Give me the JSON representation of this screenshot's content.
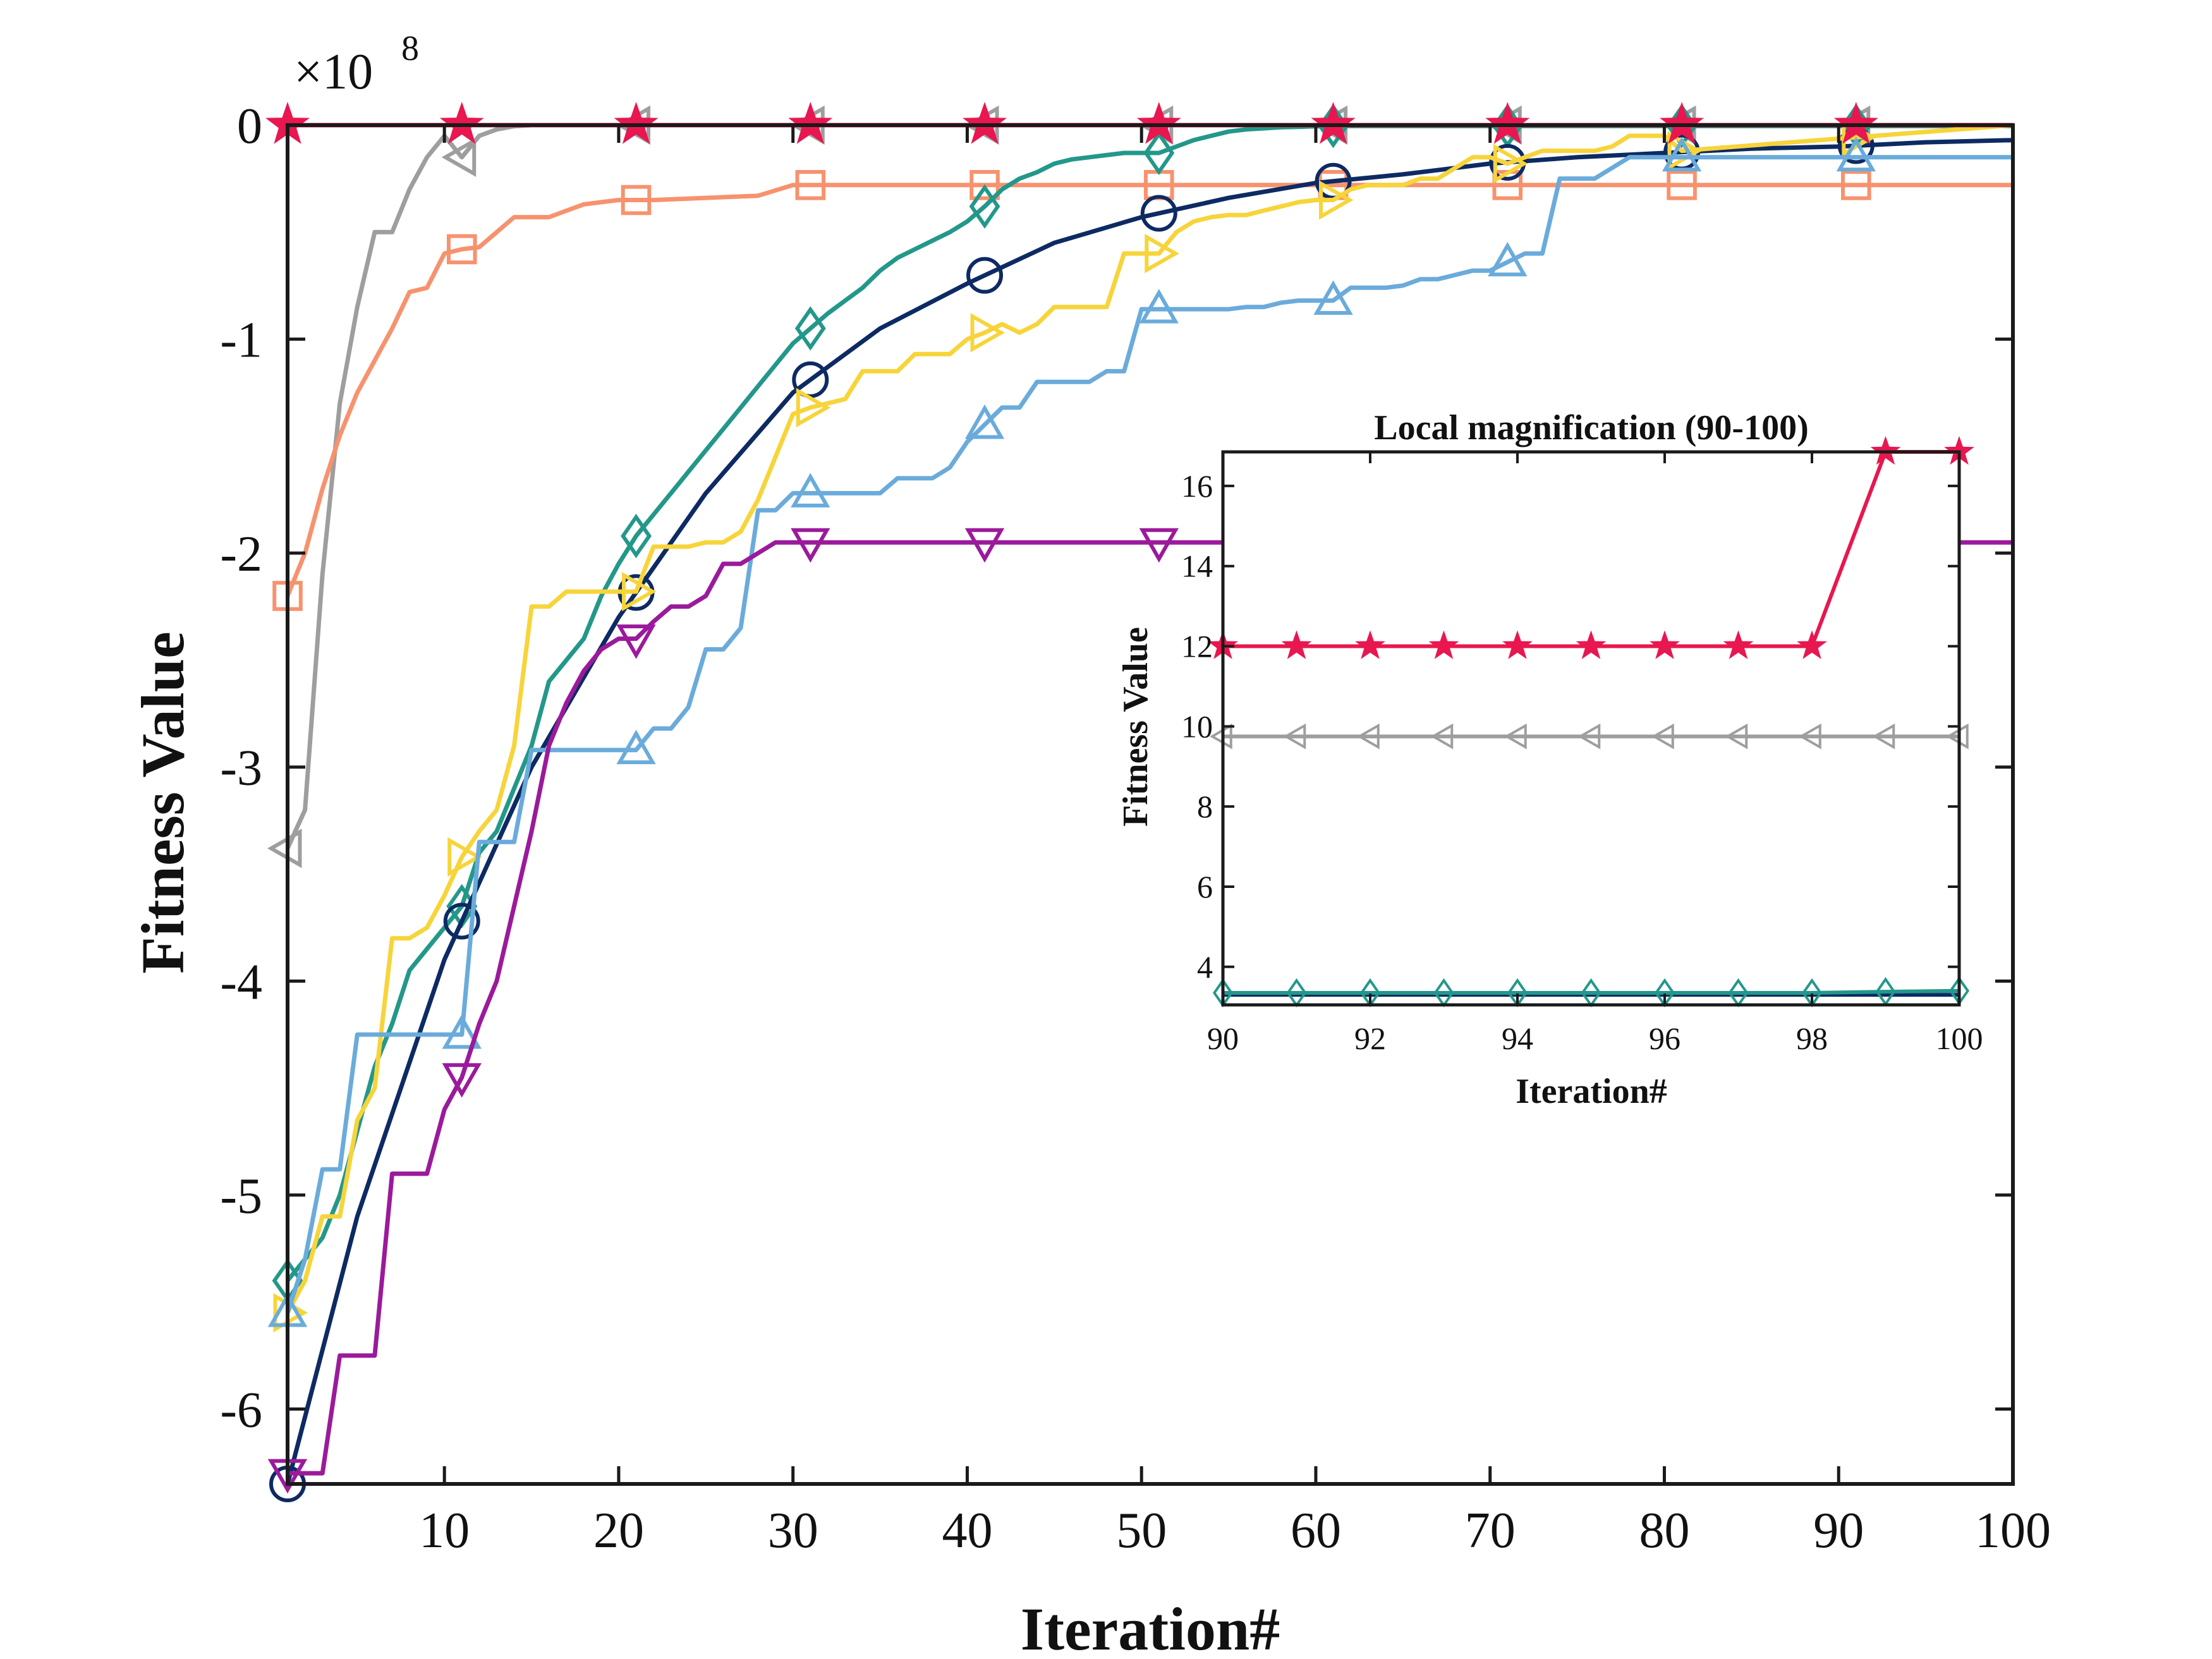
{
  "chart_data": [
    {
      "type": "line",
      "xlabel": "Iteration#",
      "ylabel": "Fitness Value",
      "exponent_base": "×10",
      "exponent_power": "8",
      "xlim": [
        1,
        100
      ],
      "ylim": [
        -6.35,
        0
      ],
      "xticks": [
        10,
        20,
        30,
        40,
        50,
        60,
        70,
        80,
        90,
        100
      ],
      "yticks": [
        0,
        -1,
        -2,
        -3,
        -4,
        -5,
        -6
      ],
      "series": [
        {
          "name": "gray-triangle-left",
          "color": "#9e9e9e",
          "marker": "tri-left",
          "x": [
            1,
            2,
            3,
            4,
            5,
            6,
            7,
            8,
            9,
            10,
            11,
            12,
            13,
            14,
            15,
            100
          ],
          "values": [
            -3.38,
            -3.2,
            -2.1,
            -1.3,
            -0.85,
            -0.5,
            -0.5,
            -0.3,
            -0.15,
            -0.05,
            -0.15,
            -0.05,
            -0.02,
            -0.005,
            0,
            0
          ]
        },
        {
          "name": "salmon-square",
          "color": "#f7926e",
          "marker": "square",
          "x": [
            1,
            2,
            3,
            4,
            5,
            6,
            7,
            8,
            9,
            10,
            11,
            12,
            13,
            14,
            15,
            16,
            17,
            18,
            19,
            20,
            22,
            25,
            28,
            30,
            100
          ],
          "values": [
            -2.2,
            -2.0,
            -1.7,
            -1.45,
            -1.25,
            -1.1,
            -0.95,
            -0.78,
            -0.76,
            -0.6,
            -0.58,
            -0.57,
            -0.5,
            -0.43,
            -0.43,
            -0.43,
            -0.4,
            -0.37,
            -0.36,
            -0.35,
            -0.35,
            -0.34,
            -0.33,
            -0.28,
            -0.28
          ]
        },
        {
          "name": "teal-diamond",
          "color": "#23988a",
          "marker": "diamond",
          "x": [
            1,
            2,
            3,
            4,
            5,
            6,
            7,
            8,
            9,
            10,
            11,
            12,
            13,
            14,
            15,
            16,
            17,
            18,
            19,
            20,
            21,
            22,
            23,
            24,
            25,
            26,
            27,
            28,
            29,
            30,
            31,
            32,
            33,
            34,
            35,
            36,
            37,
            38,
            39,
            40,
            41,
            42,
            43,
            44,
            45,
            46,
            47,
            48,
            49,
            50,
            51,
            52,
            53,
            54,
            55,
            56,
            57,
            58,
            59,
            60,
            61,
            100
          ],
          "values": [
            -5.4,
            -5.3,
            -5.2,
            -5.0,
            -4.7,
            -4.4,
            -4.2,
            -3.95,
            -3.85,
            -3.75,
            -3.65,
            -3.4,
            -3.3,
            -3.1,
            -2.9,
            -2.6,
            -2.5,
            -2.4,
            -2.2,
            -2.05,
            -1.92,
            -1.82,
            -1.72,
            -1.62,
            -1.52,
            -1.42,
            -1.32,
            -1.22,
            -1.12,
            -1.02,
            -0.95,
            -0.88,
            -0.82,
            -0.76,
            -0.68,
            -0.62,
            -0.58,
            -0.54,
            -0.5,
            -0.45,
            -0.38,
            -0.3,
            -0.25,
            -0.22,
            -0.18,
            -0.16,
            -0.15,
            -0.14,
            -0.13,
            -0.13,
            -0.13,
            -0.1,
            -0.07,
            -0.05,
            -0.03,
            -0.02,
            -0.015,
            -0.01,
            -0.008,
            -0.005,
            -0.004,
            -0.004
          ]
        },
        {
          "name": "navy-circle",
          "color": "#0d2a63",
          "marker": "circle",
          "x": [
            1,
            5,
            10,
            15,
            20,
            25,
            30,
            35,
            40,
            45,
            50,
            55,
            60,
            65,
            70,
            75,
            80,
            85,
            90,
            95,
            100
          ],
          "values": [
            -6.35,
            -5.1,
            -3.9,
            -3.0,
            -2.3,
            -1.72,
            -1.25,
            -0.95,
            -0.74,
            -0.55,
            -0.43,
            -0.34,
            -0.27,
            -0.23,
            -0.18,
            -0.15,
            -0.13,
            -0.11,
            -0.1,
            -0.08,
            -0.07
          ]
        },
        {
          "name": "yellow-triangle-right",
          "color": "#f7d43a",
          "marker": "tri-right",
          "x": [
            1,
            2,
            3,
            4,
            5,
            6,
            7,
            8,
            9,
            10,
            11,
            12,
            13,
            14,
            15,
            16,
            17,
            18,
            19,
            20,
            21,
            22,
            23,
            24,
            25,
            26,
            27,
            28,
            29,
            30,
            31,
            32,
            33,
            34,
            35,
            36,
            37,
            38,
            39,
            40,
            41,
            42,
            43,
            44,
            45,
            46,
            47,
            48,
            49,
            50,
            51,
            52,
            53,
            54,
            55,
            56,
            57,
            58,
            59,
            60,
            61,
            62,
            63,
            64,
            65,
            66,
            67,
            68,
            69,
            70,
            71,
            72,
            73,
            74,
            75,
            76,
            77,
            78,
            79,
            80,
            81,
            100
          ],
          "values": [
            -5.55,
            -5.4,
            -5.1,
            -5.1,
            -4.65,
            -4.5,
            -3.8,
            -3.8,
            -3.75,
            -3.6,
            -3.42,
            -3.3,
            -3.2,
            -2.9,
            -2.25,
            -2.25,
            -2.18,
            -2.18,
            -2.18,
            -2.18,
            -2.18,
            -1.97,
            -1.97,
            -1.97,
            -1.95,
            -1.95,
            -1.9,
            -1.75,
            -1.55,
            -1.35,
            -1.32,
            -1.3,
            -1.28,
            -1.15,
            -1.15,
            -1.15,
            -1.07,
            -1.07,
            -1.07,
            -1.0,
            -0.97,
            -0.93,
            -0.97,
            -0.93,
            -0.85,
            -0.85,
            -0.85,
            -0.85,
            -0.6,
            -0.6,
            -0.6,
            -0.5,
            -0.45,
            -0.43,
            -0.42,
            -0.42,
            -0.4,
            -0.38,
            -0.36,
            -0.35,
            -0.35,
            -0.3,
            -0.28,
            -0.28,
            -0.28,
            -0.25,
            -0.25,
            -0.2,
            -0.15,
            -0.15,
            -0.18,
            -0.15,
            -0.12,
            -0.12,
            -0.12,
            -0.12,
            -0.1,
            -0.05,
            -0.05,
            -0.05,
            -0.12,
            0
          ]
        },
        {
          "name": "blue-triangle-up",
          "color": "#6aabdb",
          "marker": "tri-up",
          "x": [
            1,
            2,
            3,
            4,
            5,
            6,
            7,
            8,
            9,
            10,
            11,
            12,
            13,
            14,
            15,
            16,
            17,
            18,
            19,
            20,
            21,
            22,
            23,
            24,
            25,
            26,
            27,
            28,
            29,
            30,
            31,
            32,
            33,
            34,
            35,
            36,
            37,
            38,
            39,
            40,
            41,
            42,
            43,
            44,
            45,
            46,
            47,
            48,
            49,
            50,
            51,
            52,
            53,
            54,
            55,
            56,
            57,
            58,
            59,
            60,
            61,
            62,
            63,
            64,
            65,
            66,
            67,
            68,
            69,
            70,
            71,
            72,
            73,
            74,
            75,
            76,
            77,
            78,
            79,
            80,
            100
          ],
          "values": [
            -5.55,
            -5.3,
            -4.88,
            -4.88,
            -4.25,
            -4.25,
            -4.25,
            -4.25,
            -4.25,
            -4.25,
            -4.25,
            -3.35,
            -3.35,
            -3.35,
            -2.92,
            -2.92,
            -2.92,
            -2.92,
            -2.92,
            -2.92,
            -2.92,
            -2.82,
            -2.82,
            -2.72,
            -2.45,
            -2.45,
            -2.35,
            -1.8,
            -1.8,
            -1.72,
            -1.72,
            -1.72,
            -1.72,
            -1.72,
            -1.72,
            -1.65,
            -1.65,
            -1.65,
            -1.6,
            -1.48,
            -1.4,
            -1.32,
            -1.32,
            -1.2,
            -1.2,
            -1.2,
            -1.2,
            -1.15,
            -1.15,
            -0.86,
            -0.86,
            -0.86,
            -0.86,
            -0.86,
            -0.86,
            -0.85,
            -0.85,
            -0.83,
            -0.82,
            -0.82,
            -0.82,
            -0.76,
            -0.76,
            -0.76,
            -0.75,
            -0.72,
            -0.72,
            -0.7,
            -0.68,
            -0.68,
            -0.64,
            -0.6,
            -0.6,
            -0.25,
            -0.25,
            -0.25,
            -0.2,
            -0.15,
            -0.15,
            -0.15,
            -0.15
          ]
        },
        {
          "name": "purple-triangle-down",
          "color": "#9b1a9b",
          "marker": "tri-down",
          "x": [
            1,
            2,
            3,
            4,
            5,
            6,
            7,
            8,
            9,
            10,
            11,
            12,
            13,
            14,
            15,
            16,
            17,
            18,
            19,
            20,
            21,
            22,
            23,
            24,
            25,
            26,
            27,
            28,
            29,
            30,
            31,
            100
          ],
          "values": [
            -6.3,
            -6.3,
            -6.3,
            -5.75,
            -5.75,
            -5.75,
            -4.9,
            -4.9,
            -4.9,
            -4.6,
            -4.45,
            -4.2,
            -4.0,
            -3.65,
            -3.3,
            -2.9,
            -2.7,
            -2.55,
            -2.45,
            -2.4,
            -2.4,
            -2.32,
            -2.25,
            -2.25,
            -2.2,
            -2.05,
            -2.05,
            -2.0,
            -1.95,
            -1.95,
            -1.95,
            -1.95
          ]
        },
        {
          "name": "crimson-star",
          "color": "#e8174f",
          "marker": "star",
          "x": [
            1,
            100
          ],
          "values": [
            0,
            0
          ]
        }
      ]
    },
    {
      "type": "line",
      "title": "Local magnification (90-100)",
      "xlabel": "Iteration#",
      "ylabel": "Fitness Value",
      "xlim": [
        90,
        100
      ],
      "ylim": [
        3.05,
        16.85
      ],
      "xticks": [
        90,
        92,
        94,
        96,
        98,
        100
      ],
      "yticks": [
        4,
        6,
        8,
        10,
        12,
        14,
        16
      ],
      "series": [
        {
          "name": "crimson-star",
          "color": "#e8174f",
          "marker": "star",
          "x": [
            90,
            91,
            92,
            93,
            94,
            95,
            96,
            97,
            98,
            99,
            100
          ],
          "values": [
            12,
            12,
            12,
            12,
            12,
            12,
            12,
            12,
            12,
            16.85,
            16.85
          ]
        },
        {
          "name": "gray-triangle-left",
          "color": "#9e9e9e",
          "marker": "tri-left",
          "x": [
            90,
            91,
            92,
            93,
            94,
            95,
            96,
            97,
            98,
            99,
            100
          ],
          "values": [
            9.75,
            9.75,
            9.75,
            9.75,
            9.75,
            9.75,
            9.75,
            9.75,
            9.75,
            9.75,
            9.75
          ]
        },
        {
          "name": "navy-line",
          "color": "#0d2a63",
          "marker": "none",
          "x": [
            90,
            100
          ],
          "values": [
            3.3,
            3.3
          ]
        },
        {
          "name": "teal-diamond",
          "color": "#23988a",
          "marker": "diamond",
          "x": [
            90,
            91,
            92,
            93,
            94,
            95,
            96,
            97,
            98,
            99,
            100
          ],
          "values": [
            3.35,
            3.35,
            3.35,
            3.35,
            3.35,
            3.35,
            3.35,
            3.35,
            3.35,
            3.38,
            3.4
          ]
        }
      ]
    }
  ]
}
